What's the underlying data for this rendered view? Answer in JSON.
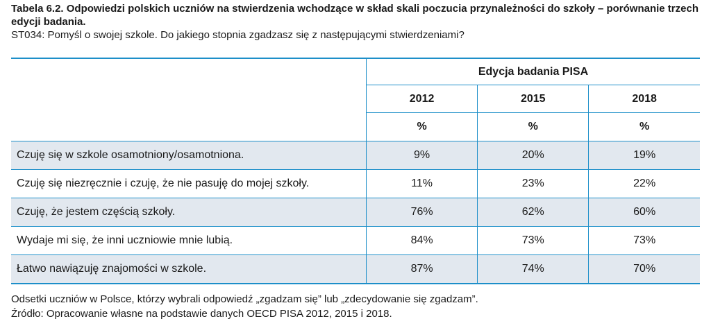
{
  "caption": {
    "title": "Tabela 6.2. Odpowiedzi polskich uczniów na stwierdzenia wchodzące w skład skali poczucia przynależności do szkoły – porównanie trzech edycji badania.",
    "question": "ST034: Pomyśl o swojej szkole. Do jakiego stopnia zgadzasz się z następującymi stwierdzeniami?"
  },
  "table": {
    "group_header": "Edycja badania PISA",
    "years": [
      "2012",
      "2015",
      "2018"
    ],
    "unit": "%",
    "rows": [
      {
        "label": "Czuję się w szkole osamotniony/osamotniona.",
        "values": [
          "9%",
          "20%",
          "19%"
        ]
      },
      {
        "label": "Czuję się niezręcznie i czuję, że nie pasuję do mojej szkoły.",
        "values": [
          "11%",
          "23%",
          "22%"
        ]
      },
      {
        "label": "Czuję, że jestem częścią szkoły.",
        "values": [
          "76%",
          "62%",
          "60%"
        ]
      },
      {
        "label": "Wydaje mi się, że inni uczniowie mnie lubią.",
        "values": [
          "84%",
          "73%",
          "73%"
        ]
      },
      {
        "label": "Łatwo nawiązuję znajomości w szkole.",
        "values": [
          "87%",
          "74%",
          "70%"
        ]
      }
    ]
  },
  "footer": {
    "note": "Odsetki uczniów w Polsce, którzy wybrali odpowiedź „zgadzam się” lub „zdecydowanie się zgadzam”.",
    "source": "Źródło: Opracowanie własne na podstawie danych OECD PISA 2012, 2015 i 2018."
  },
  "colors": {
    "rule": "#1d8fc9",
    "shade": "#e2e8ef"
  }
}
